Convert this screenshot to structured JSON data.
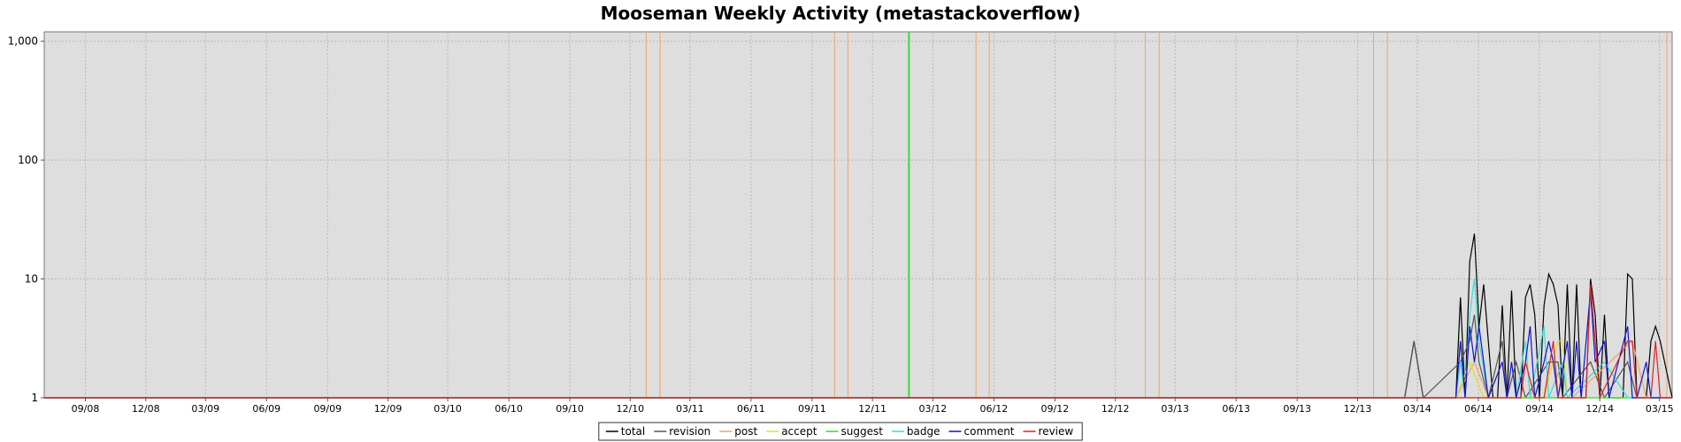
{
  "chart_data": {
    "type": "line",
    "title": "Mooseman Weekly Activity (metastackoverflow)",
    "xlabel": "",
    "ylabel": "",
    "y_scale": "log",
    "ylim": [
      1,
      1200
    ],
    "xlim": [
      "2008-07-01",
      "2015-03-20"
    ],
    "grid": true,
    "legend_position": "bottom",
    "y_ticks": [
      {
        "value": 1,
        "label": "1"
      },
      {
        "value": 10,
        "label": "10"
      },
      {
        "value": 100,
        "label": "100"
      },
      {
        "value": 1000,
        "label": "1,000"
      }
    ],
    "x_ticks": [
      {
        "date": "2008-09-01",
        "label": "09/08"
      },
      {
        "date": "2008-12-01",
        "label": "12/08"
      },
      {
        "date": "2009-03-01",
        "label": "03/09"
      },
      {
        "date": "2009-06-01",
        "label": "06/09"
      },
      {
        "date": "2009-09-01",
        "label": "09/09"
      },
      {
        "date": "2009-12-01",
        "label": "12/09"
      },
      {
        "date": "2010-03-01",
        "label": "03/10"
      },
      {
        "date": "2010-06-01",
        "label": "06/10"
      },
      {
        "date": "2010-09-01",
        "label": "09/10"
      },
      {
        "date": "2010-12-01",
        "label": "12/10"
      },
      {
        "date": "2011-03-01",
        "label": "03/11"
      },
      {
        "date": "2011-06-01",
        "label": "06/11"
      },
      {
        "date": "2011-09-01",
        "label": "09/11"
      },
      {
        "date": "2011-12-01",
        "label": "12/11"
      },
      {
        "date": "2012-03-01",
        "label": "03/12"
      },
      {
        "date": "2012-06-01",
        "label": "06/12"
      },
      {
        "date": "2012-09-01",
        "label": "09/12"
      },
      {
        "date": "2012-12-01",
        "label": "12/12"
      },
      {
        "date": "2013-03-01",
        "label": "03/13"
      },
      {
        "date": "2013-06-01",
        "label": "06/13"
      },
      {
        "date": "2013-09-01",
        "label": "09/13"
      },
      {
        "date": "2013-12-01",
        "label": "12/13"
      },
      {
        "date": "2014-03-01",
        "label": "03/14"
      },
      {
        "date": "2014-06-01",
        "label": "06/14"
      },
      {
        "date": "2014-09-01",
        "label": "09/14"
      },
      {
        "date": "2014-12-01",
        "label": "12/14"
      },
      {
        "date": "2015-03-01",
        "label": "03/15"
      }
    ],
    "event_lines": [
      {
        "date": "2010-12-25",
        "color": "#f5a35c"
      },
      {
        "date": "2011-01-15",
        "color": "#f5a35c"
      },
      {
        "date": "2011-10-05",
        "color": "#f5a35c"
      },
      {
        "date": "2011-10-25",
        "color": "#f5a35c"
      },
      {
        "date": "2012-01-25",
        "color": "#33dd33"
      },
      {
        "date": "2012-05-05",
        "color": "#f5a35c"
      },
      {
        "date": "2012-05-25",
        "color": "#f5a35c"
      },
      {
        "date": "2013-01-15",
        "color": "#f5a35c"
      },
      {
        "date": "2013-02-05",
        "color": "#f5a35c"
      },
      {
        "date": "2013-12-25",
        "color": "#f5a35c"
      },
      {
        "date": "2014-01-15",
        "color": "#f5a35c"
      },
      {
        "date": "2015-03-12",
        "color": "#f5a35c"
      }
    ],
    "series": [
      {
        "name": "total",
        "color": "#000000",
        "points": [
          [
            "2014-02-10",
            1
          ],
          [
            "2014-02-24",
            3
          ],
          [
            "2014-03-10",
            1
          ],
          [
            "2014-04-28",
            1
          ],
          [
            "2014-05-05",
            7
          ],
          [
            "2014-05-12",
            1
          ],
          [
            "2014-05-19",
            14
          ],
          [
            "2014-05-26",
            24
          ],
          [
            "2014-06-02",
            4
          ],
          [
            "2014-06-09",
            9
          ],
          [
            "2014-06-16",
            3
          ],
          [
            "2014-06-23",
            1
          ],
          [
            "2014-06-30",
            1
          ],
          [
            "2014-07-07",
            6
          ],
          [
            "2014-07-14",
            1
          ],
          [
            "2014-07-21",
            8
          ],
          [
            "2014-07-28",
            1
          ],
          [
            "2014-08-04",
            1
          ],
          [
            "2014-08-11",
            7
          ],
          [
            "2014-08-18",
            9
          ],
          [
            "2014-08-25",
            5
          ],
          [
            "2014-09-01",
            1
          ],
          [
            "2014-09-08",
            6
          ],
          [
            "2014-09-15",
            11
          ],
          [
            "2014-09-22",
            9
          ],
          [
            "2014-09-29",
            6
          ],
          [
            "2014-10-06",
            1
          ],
          [
            "2014-10-13",
            9
          ],
          [
            "2014-10-20",
            1
          ],
          [
            "2014-10-27",
            9
          ],
          [
            "2014-11-03",
            1
          ],
          [
            "2014-11-10",
            1
          ],
          [
            "2014-11-17",
            10
          ],
          [
            "2014-11-24",
            5
          ],
          [
            "2014-12-01",
            1
          ],
          [
            "2014-12-08",
            5
          ],
          [
            "2014-12-15",
            1
          ],
          [
            "2014-12-22",
            1
          ],
          [
            "2014-12-29",
            1
          ],
          [
            "2015-01-05",
            1
          ],
          [
            "2015-01-12",
            11
          ],
          [
            "2015-01-19",
            10
          ],
          [
            "2015-01-26",
            1
          ],
          [
            "2015-02-02",
            1
          ],
          [
            "2015-02-09",
            1
          ],
          [
            "2015-02-16",
            3
          ],
          [
            "2015-02-23",
            4
          ],
          [
            "2015-03-02",
            3
          ]
        ]
      },
      {
        "name": "revision",
        "color": "#555555",
        "points": [
          [
            "2014-02-10",
            1
          ],
          [
            "2014-02-24",
            3
          ],
          [
            "2014-03-10",
            1
          ],
          [
            "2014-05-05",
            2
          ],
          [
            "2014-05-19",
            3
          ],
          [
            "2014-05-26",
            5
          ],
          [
            "2014-06-02",
            2
          ],
          [
            "2014-06-16",
            1
          ],
          [
            "2014-07-07",
            3
          ],
          [
            "2014-07-14",
            1
          ],
          [
            "2014-07-28",
            2
          ],
          [
            "2014-08-11",
            1
          ],
          [
            "2014-09-15",
            2
          ],
          [
            "2014-09-29",
            2
          ],
          [
            "2014-10-06",
            1
          ],
          [
            "2014-11-17",
            2
          ],
          [
            "2014-12-08",
            1
          ],
          [
            "2015-01-12",
            2
          ],
          [
            "2015-01-26",
            1
          ],
          [
            "2015-03-02",
            1
          ]
        ]
      },
      {
        "name": "post",
        "color": "#f5a35c",
        "points": [
          [
            "2014-04-28",
            1
          ],
          [
            "2014-05-26",
            2
          ],
          [
            "2014-06-16",
            1
          ],
          [
            "2014-08-25",
            1
          ],
          [
            "2014-10-20",
            1
          ],
          [
            "2015-01-19",
            3
          ],
          [
            "2015-02-09",
            1
          ],
          [
            "2015-03-02",
            1
          ]
        ]
      },
      {
        "name": "accept",
        "color": "#dddd33",
        "points": [
          [
            "2014-04-28",
            1
          ],
          [
            "2014-05-19",
            2
          ],
          [
            "2014-06-09",
            1
          ],
          [
            "2014-09-08",
            1
          ],
          [
            "2014-09-29",
            3
          ],
          [
            "2014-10-06",
            3
          ],
          [
            "2014-10-13",
            1
          ],
          [
            "2015-03-02",
            1
          ]
        ]
      },
      {
        "name": "suggest",
        "color": "#33dd33",
        "points": [
          [
            "2014-04-28",
            1
          ],
          [
            "2014-05-26",
            1
          ],
          [
            "2015-03-02",
            1
          ]
        ]
      },
      {
        "name": "badge",
        "color": "#33dddd",
        "points": [
          [
            "2014-04-28",
            1
          ],
          [
            "2014-05-05",
            2
          ],
          [
            "2014-05-12",
            1
          ],
          [
            "2014-05-19",
            5
          ],
          [
            "2014-05-26",
            10
          ],
          [
            "2014-06-02",
            3
          ],
          [
            "2014-06-16",
            1
          ],
          [
            "2014-07-28",
            1
          ],
          [
            "2014-08-11",
            3
          ],
          [
            "2014-08-18",
            1
          ],
          [
            "2014-09-08",
            4
          ],
          [
            "2014-09-15",
            1
          ],
          [
            "2014-10-06",
            2
          ],
          [
            "2014-10-13",
            1
          ],
          [
            "2014-12-08",
            2
          ],
          [
            "2015-01-12",
            1
          ],
          [
            "2015-02-09",
            1
          ],
          [
            "2015-03-02",
            1
          ]
        ]
      },
      {
        "name": "comment",
        "color": "#1111cc",
        "points": [
          [
            "2014-04-28",
            1
          ],
          [
            "2014-05-05",
            3
          ],
          [
            "2014-05-12",
            1
          ],
          [
            "2014-05-19",
            4
          ],
          [
            "2014-05-26",
            2
          ],
          [
            "2014-06-02",
            4
          ],
          [
            "2014-06-09",
            2
          ],
          [
            "2014-06-16",
            1
          ],
          [
            "2014-07-07",
            2
          ],
          [
            "2014-07-14",
            1
          ],
          [
            "2014-07-21",
            2
          ],
          [
            "2014-07-28",
            1
          ],
          [
            "2014-08-11",
            2
          ],
          [
            "2014-08-18",
            4
          ],
          [
            "2014-08-25",
            1
          ],
          [
            "2014-09-08",
            2
          ],
          [
            "2014-09-15",
            3
          ],
          [
            "2014-09-22",
            2
          ],
          [
            "2014-09-29",
            1
          ],
          [
            "2014-10-13",
            3
          ],
          [
            "2014-10-20",
            1
          ],
          [
            "2014-10-27",
            3
          ],
          [
            "2014-11-03",
            1
          ],
          [
            "2014-11-17",
            8
          ],
          [
            "2014-11-24",
            2
          ],
          [
            "2014-12-08",
            3
          ],
          [
            "2014-12-15",
            1
          ],
          [
            "2015-01-12",
            4
          ],
          [
            "2015-01-19",
            1
          ],
          [
            "2015-01-26",
            1
          ],
          [
            "2015-02-09",
            2
          ],
          [
            "2015-02-16",
            1
          ],
          [
            "2015-03-02",
            1
          ]
        ]
      },
      {
        "name": "review",
        "color": "#dd2222",
        "points": [
          [
            "2014-04-28",
            1
          ],
          [
            "2014-08-04",
            1
          ],
          [
            "2014-08-11",
            2
          ],
          [
            "2014-08-25",
            1
          ],
          [
            "2014-09-08",
            1
          ],
          [
            "2014-09-22",
            3
          ],
          [
            "2014-09-29",
            1
          ],
          [
            "2014-11-10",
            1
          ],
          [
            "2014-11-17",
            9
          ],
          [
            "2014-11-24",
            3
          ],
          [
            "2014-12-01",
            1
          ],
          [
            "2015-01-12",
            3
          ],
          [
            "2015-01-19",
            3
          ],
          [
            "2015-01-26",
            1
          ],
          [
            "2015-02-16",
            1
          ],
          [
            "2015-02-23",
            3
          ],
          [
            "2015-03-02",
            1
          ]
        ]
      }
    ]
  }
}
